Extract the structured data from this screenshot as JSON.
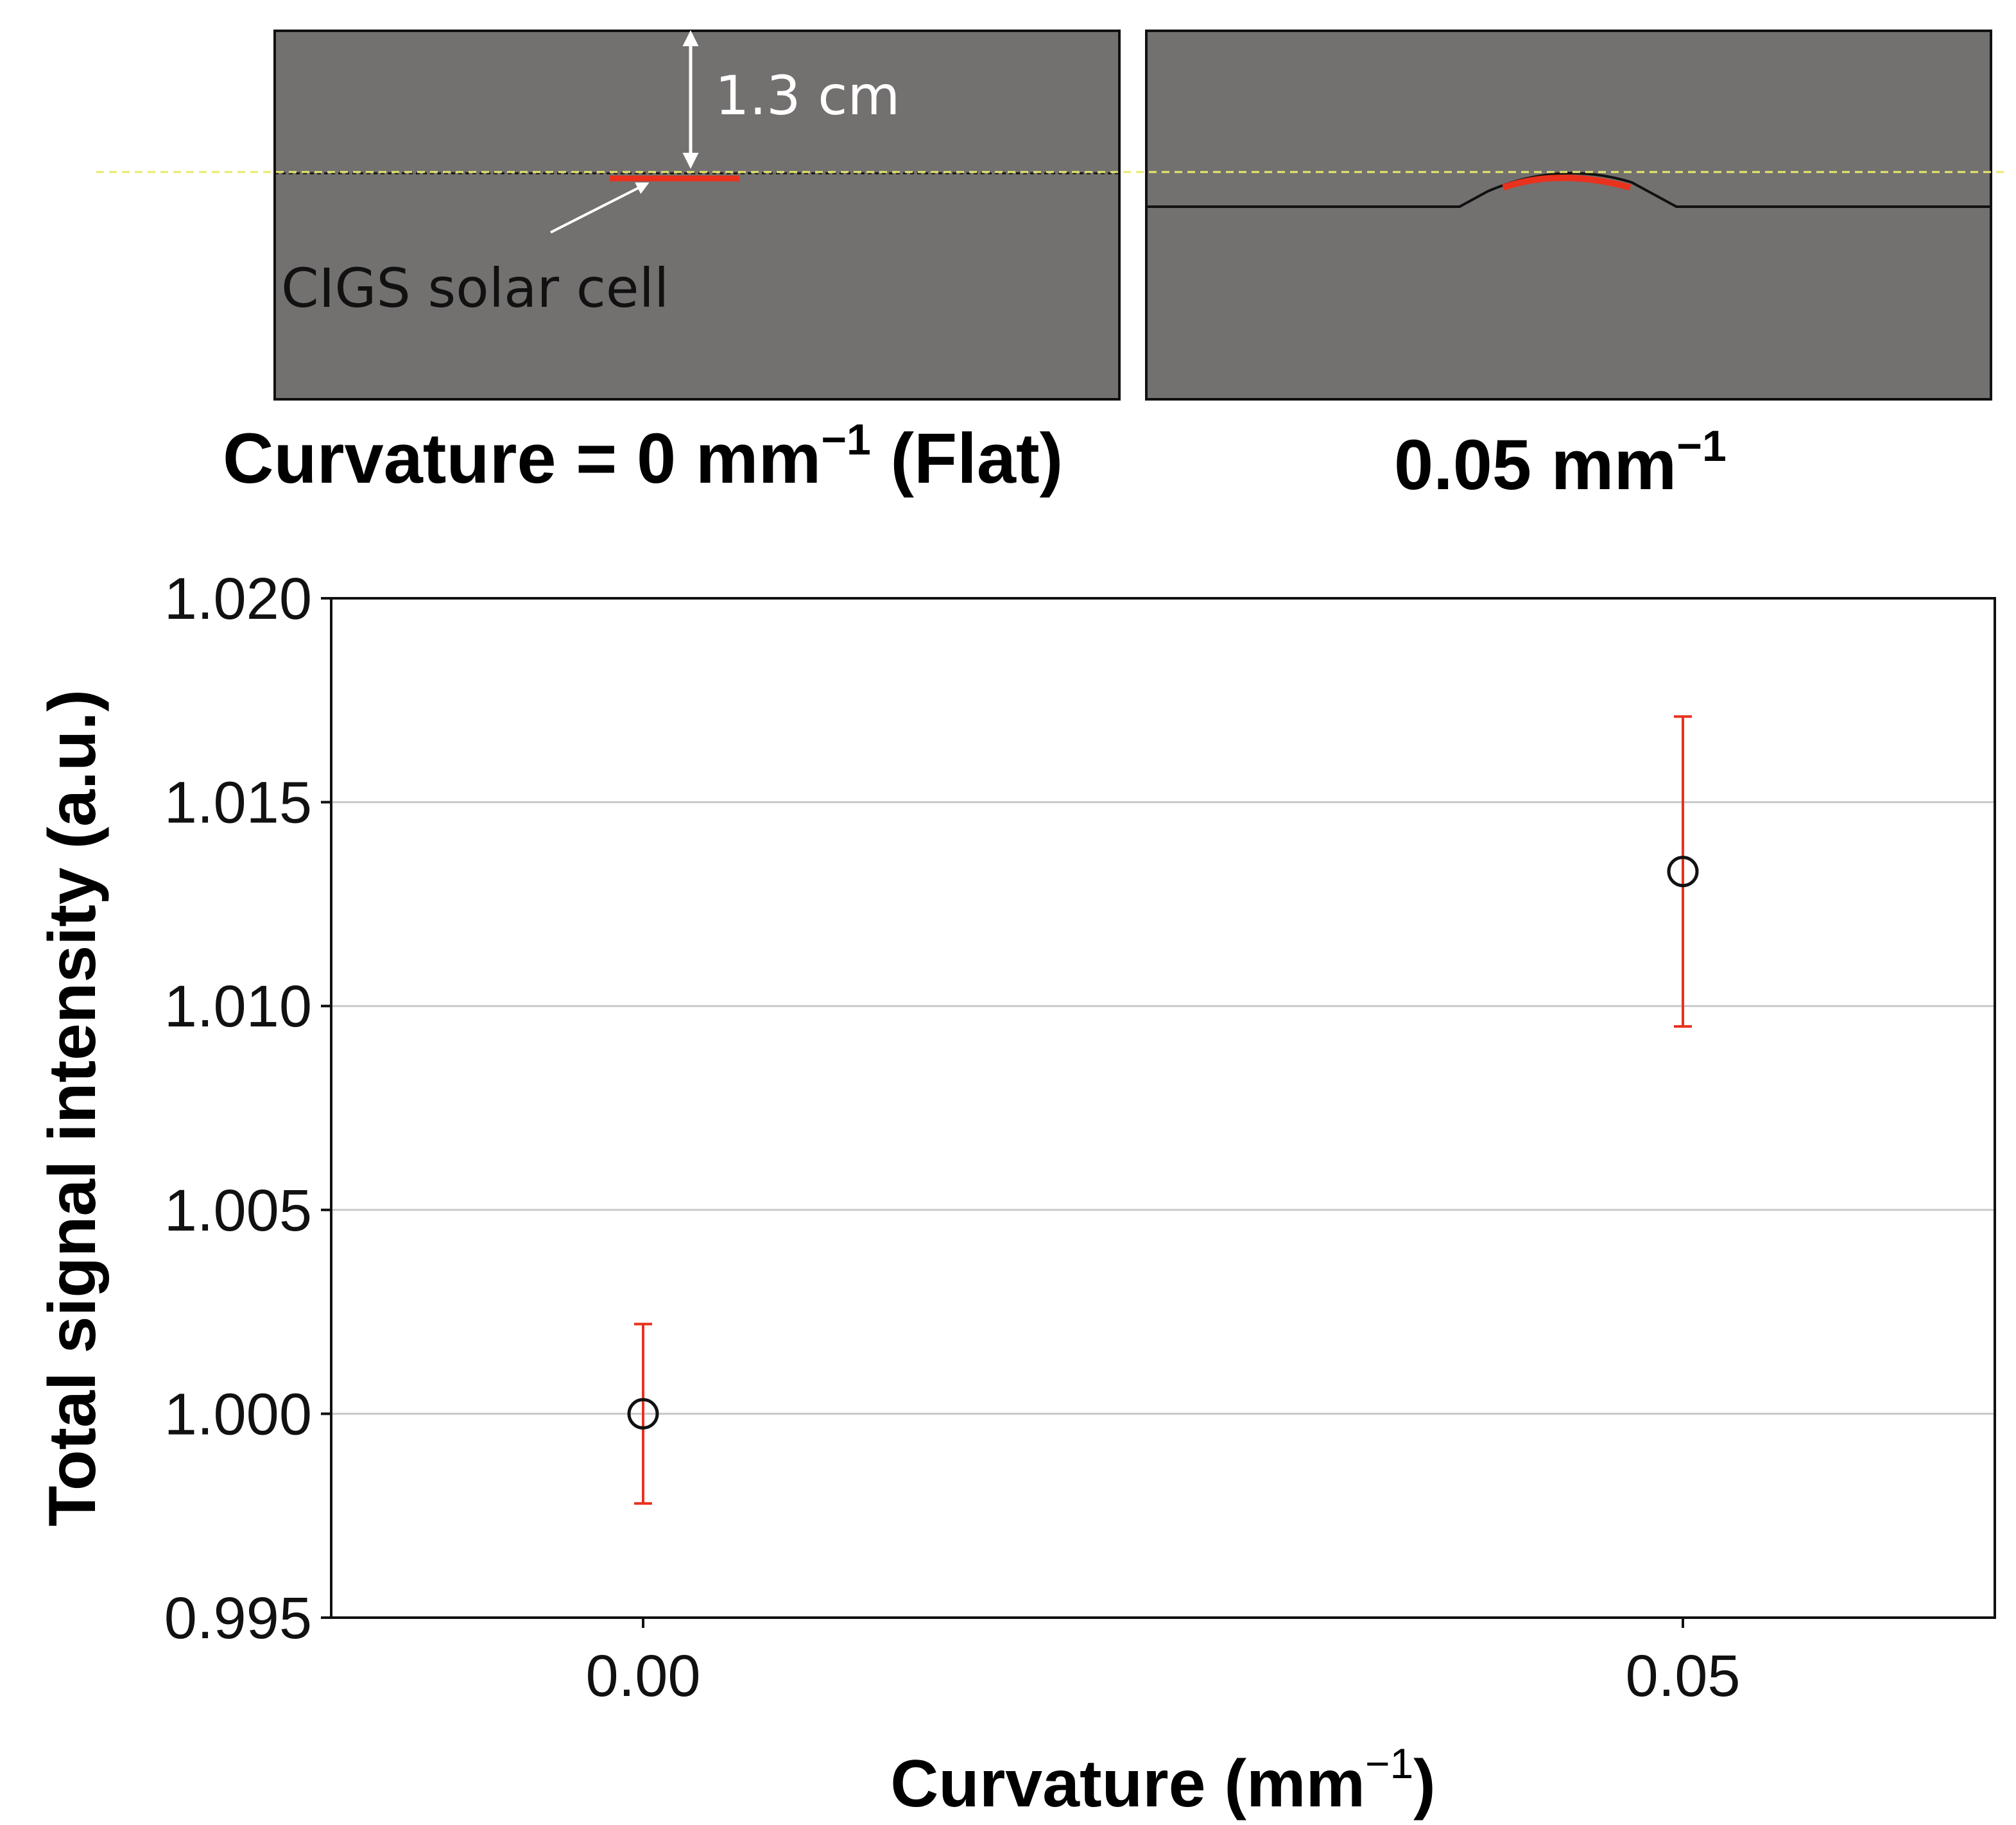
{
  "schematics": {
    "flat": {
      "dimension_label": "1.3 cm",
      "cell_label": "CIGS solar cell",
      "caption_main": "Curvature = 0 mm",
      "caption_sup": "−1",
      "caption_suffix": " (Flat)"
    },
    "curved": {
      "caption_main": "0.05 mm",
      "caption_sup": "−1"
    },
    "colors": {
      "panel_fill": "#737070",
      "cell_red": "#e8321e",
      "guide_line": "#e8ea6a",
      "arrow_white": "#ffffff"
    }
  },
  "chart_data": {
    "type": "scatter",
    "xlabel_main": "Curvature (mm",
    "xlabel_sup": "−1",
    "xlabel_close": ")",
    "ylabel": "Total signal intensity (a.u.)",
    "x_ticks": [
      "0.00",
      "0.05"
    ],
    "x_tick_values": [
      0.0,
      0.05
    ],
    "y_ticks": [
      "0.995",
      "1.000",
      "1.005",
      "1.010",
      "1.015",
      "1.020"
    ],
    "y_tick_values": [
      0.995,
      1.0,
      1.005,
      1.01,
      1.015,
      1.02
    ],
    "xlim": [
      -0.015,
      0.065
    ],
    "ylim": [
      0.995,
      1.02
    ],
    "grid": "horizontal",
    "marker": "open-circle",
    "marker_color": "#111111",
    "errorbar_color": "#e8321e",
    "points": [
      {
        "x": 0.0,
        "y": 1.0,
        "yerr_low": 0.9978,
        "yerr_high": 1.0022
      },
      {
        "x": 0.05,
        "y": 1.0133,
        "yerr_low": 1.0095,
        "yerr_high": 1.0171
      }
    ]
  }
}
